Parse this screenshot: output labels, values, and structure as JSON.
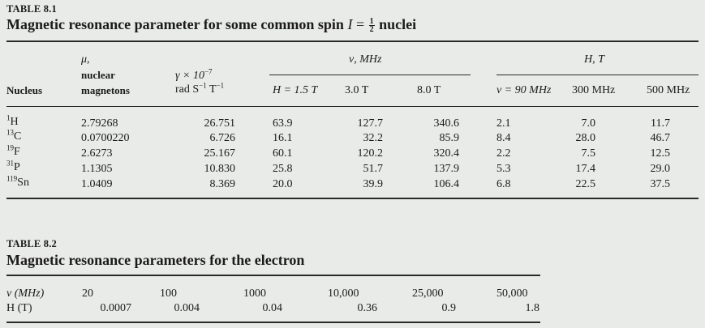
{
  "table1": {
    "label": "TABLE 8.1",
    "title_pre": "Magnetic resonance parameter for some common spin ",
    "title_var": "I",
    "title_eq": " = ",
    "title_frac_num": "1",
    "title_frac_den": "2",
    "title_post": " nuclei",
    "headers": {
      "nucleus": "Nucleus",
      "mu_symbol": "μ,",
      "mu_line2": "nuclear",
      "mu_line3": "magnetons",
      "gamma_line1_pre": "γ × 10",
      "gamma_line1_exp": "−7",
      "gamma_line2_a": "rad S",
      "gamma_line2_exp1": "−1",
      "gamma_line2_b": " T",
      "gamma_line2_exp2": "−1",
      "nu_group": "ν, MHz",
      "nu_cols": [
        "H = 1.5 T",
        "3.0 T",
        "8.0 T"
      ],
      "h_group": "H, T",
      "h_cols": [
        "ν = 90 MHz",
        "300 MHz",
        "500 MHz"
      ]
    },
    "rows": [
      {
        "mass": "1",
        "symbol": "H",
        "mu": "2.79268",
        "gamma": "26.751",
        "nu1": "63.9",
        "nu2": "127.7",
        "nu3": "340.6",
        "h1": "2.1",
        "h2": "7.0",
        "h3": "11.7"
      },
      {
        "mass": "13",
        "symbol": "C",
        "mu": "0.0700220",
        "gamma": "6.726",
        "nu1": "16.1",
        "nu2": "32.2",
        "nu3": "85.9",
        "h1": "8.4",
        "h2": "28.0",
        "h3": "46.7"
      },
      {
        "mass": "19",
        "symbol": "F",
        "mu": "2.6273",
        "gamma": "25.167",
        "nu1": "60.1",
        "nu2": "120.2",
        "nu3": "320.4",
        "h1": "2.2",
        "h2": "7.5",
        "h3": "12.5"
      },
      {
        "mass": "31",
        "symbol": "P",
        "mu": "1.1305",
        "gamma": "10.830",
        "nu1": "25.8",
        "nu2": "51.7",
        "nu3": "137.9",
        "h1": "5.3",
        "h2": "17.4",
        "h3": "29.0"
      },
      {
        "mass": "119",
        "symbol": "Sn",
        "mu": "1.0409",
        "gamma": "8.369",
        "nu1": "20.0",
        "nu2": "39.9",
        "nu3": "106.4",
        "h1": "6.8",
        "h2": "22.5",
        "h3": "37.5"
      }
    ]
  },
  "table2": {
    "label": "TABLE 8.2",
    "title": "Magnetic resonance parameters for the electron",
    "row_nu_label": "ν (MHz)",
    "row_h_label": "H (T)",
    "nu_values": [
      "20",
      "100",
      "1000",
      "10,000",
      "25,000",
      "50,000"
    ],
    "h_values": [
      "0.0007",
      "0.004",
      "0.04",
      "0.36",
      "0.9",
      "1.8"
    ]
  }
}
